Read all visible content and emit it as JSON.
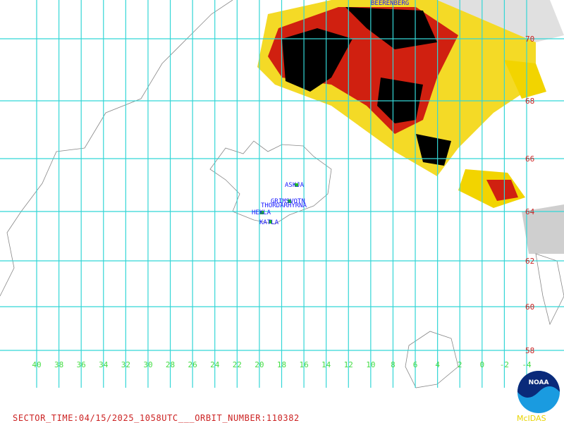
{
  "map": {
    "volcanoes": [
      "ASKJA",
      "GRIMSVOTN",
      "THORDARHYRNA",
      "HEKLA",
      "KATLA",
      "BEERENBERG"
    ],
    "lat_labels": [
      "70",
      "68",
      "66",
      "64",
      "62",
      "60",
      "58"
    ],
    "lon_labels": [
      "40",
      "38",
      "36",
      "34",
      "32",
      "30",
      "28",
      "26",
      "24",
      "22",
      "20",
      "18",
      "16",
      "14",
      "12",
      "10",
      "8",
      "6",
      "4",
      "2",
      "0",
      "-2",
      "-4"
    ],
    "footer": "SECTOR_TIME:04/15/2025_1058UTC___ORBIT_NUMBER:110382",
    "logo": "NOAA",
    "software": "McIDAS"
  }
}
